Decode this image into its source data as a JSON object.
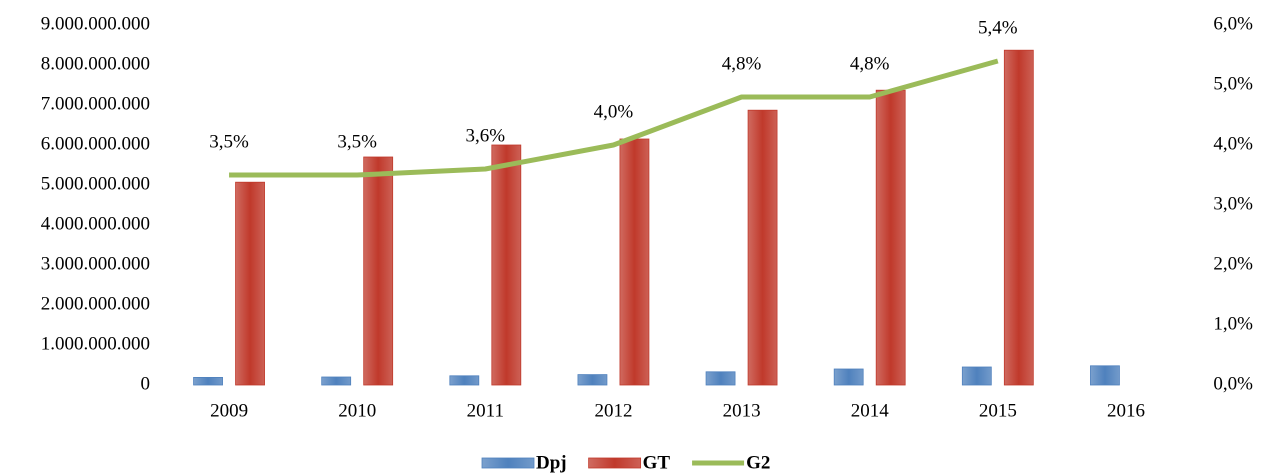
{
  "chart_data": {
    "type": "bar_line",
    "categories": [
      "2009",
      "2010",
      "2011",
      "2012",
      "2013",
      "2014",
      "2015",
      "2016"
    ],
    "series": [
      {
        "name": "Dpj",
        "color": "#4f81bd",
        "values": [
          190000000,
          200000000,
          230000000,
          260000000,
          330000000,
          400000000,
          450000000,
          480000000
        ]
      },
      {
        "name": "GT",
        "color": "#c0392b",
        "values": [
          5070000000,
          5700000000,
          6000000000,
          6150000000,
          6870000000,
          7370000000,
          8370000000,
          null
        ]
      },
      {
        "name": "G2",
        "color": "#9bbb59",
        "axis": "y2",
        "values": [
          3.5,
          3.5,
          3.6,
          4.0,
          4.8,
          4.8,
          5.4,
          null
        ],
        "value_labels": [
          "3,5%",
          "3,5%",
          "3,6%",
          "4,0%",
          "4,8%",
          "4,8%",
          "5,4%",
          null
        ]
      }
    ],
    "ylim": [
      0,
      9000000000
    ],
    "yticks": [
      0,
      {
        "value": 1000000000,
        "label": "1.000.000.000"
      },
      {
        "value": 2000000000,
        "label": "2.000.000.000"
      },
      {
        "value": 3000000000,
        "label": "3.000.000.000"
      },
      {
        "value": 4000000000,
        "label": "4.000.000.000"
      },
      {
        "value": 5000000000,
        "label": "5.000.000.000"
      },
      {
        "value": 6000000000,
        "label": "6.000.000.000"
      },
      {
        "value": 7000000000,
        "label": "7.000.000.000"
      },
      {
        "value": 8000000000,
        "label": "8.000.000.000"
      },
      {
        "value": 9000000000,
        "label": "9.000.000.000"
      }
    ],
    "y2lim": [
      0,
      6
    ],
    "y2ticks": [
      {
        "value": 0,
        "label": "0,0%"
      },
      {
        "value": 1,
        "label": "1,0%"
      },
      {
        "value": 2,
        "label": "2,0%"
      },
      {
        "value": 3,
        "label": "3,0%"
      },
      {
        "value": 4,
        "label": "4,0%"
      },
      {
        "value": 5,
        "label": "5,0%"
      },
      {
        "value": 6,
        "label": "6,0%"
      }
    ],
    "legend": "bottom"
  }
}
